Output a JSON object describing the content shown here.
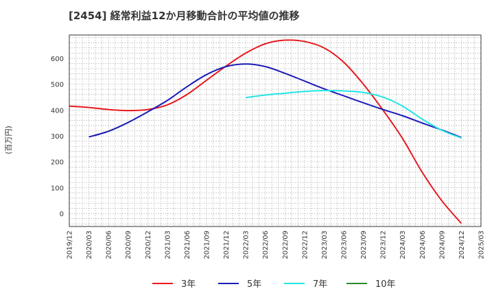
{
  "chart_data": {
    "type": "line",
    "title": "[2454]  経常利益12か月移動合計の平均値の推移",
    "ylabel": "(百万円)",
    "xlabel": "",
    "ylim": [
      -50,
      690
    ],
    "yticks": [
      0,
      100,
      200,
      300,
      400,
      500,
      600
    ],
    "xlim": [
      "2019/12",
      "2025/03"
    ],
    "categories": [
      "2019/12",
      "2020/03",
      "2020/06",
      "2020/09",
      "2020/12",
      "2021/03",
      "2021/06",
      "2021/09",
      "2021/12",
      "2022/03",
      "2022/06",
      "2022/09",
      "2022/12",
      "2023/03",
      "2023/06",
      "2023/09",
      "2023/12",
      "2024/03",
      "2024/06",
      "2024/09",
      "2024/12",
      "2025/03"
    ],
    "grid": true,
    "legend_position": "bottom",
    "series": [
      {
        "name": "3年",
        "color": "#e8171e",
        "x": [
          "2019/12",
          "2020/03",
          "2020/06",
          "2020/09",
          "2020/12",
          "2021/03",
          "2021/06",
          "2021/09",
          "2021/12",
          "2022/03",
          "2022/06",
          "2022/09",
          "2022/12",
          "2023/03",
          "2023/06",
          "2023/09",
          "2023/12",
          "2024/03",
          "2024/06",
          "2024/09",
          "2024/12"
        ],
        "values": [
          415,
          410,
          402,
          398,
          402,
          420,
          460,
          515,
          570,
          620,
          656,
          670,
          665,
          640,
          585,
          500,
          400,
          290,
          160,
          50,
          -38
        ]
      },
      {
        "name": "5年",
        "color": "#1a1ab5",
        "x": [
          "2020/03",
          "2020/06",
          "2020/09",
          "2020/12",
          "2021/03",
          "2021/06",
          "2021/09",
          "2021/12",
          "2022/03",
          "2022/06",
          "2022/09",
          "2022/12",
          "2023/03",
          "2023/06",
          "2023/09",
          "2023/12",
          "2024/03",
          "2024/06",
          "2024/09",
          "2024/12"
        ],
        "values": [
          296,
          318,
          352,
          393,
          437,
          490,
          537,
          568,
          578,
          568,
          542,
          512,
          482,
          455,
          428,
          402,
          378,
          350,
          323,
          294
        ]
      },
      {
        "name": "7年",
        "color": "#22e5e5",
        "x": [
          "2022/03",
          "2022/06",
          "2022/09",
          "2022/12",
          "2023/03",
          "2023/06",
          "2023/09",
          "2023/12",
          "2024/03",
          "2024/06",
          "2024/09",
          "2024/12"
        ],
        "values": [
          448,
          458,
          465,
          472,
          475,
          474,
          468,
          450,
          415,
          365,
          322,
          292
        ]
      },
      {
        "name": "10年",
        "color": "#2a8a2a",
        "x": [],
        "values": []
      }
    ]
  }
}
